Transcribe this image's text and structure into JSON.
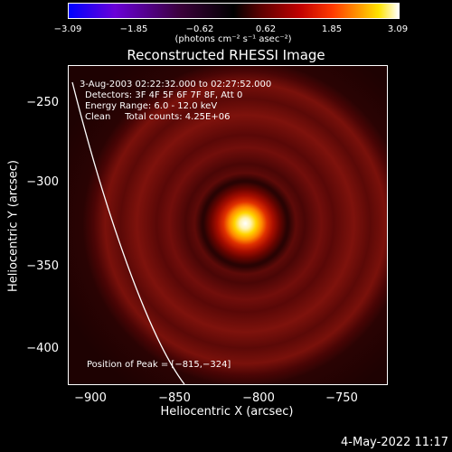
{
  "colorbar": {
    "ticks": [
      "−3.09",
      "−1.85",
      "−0.62",
      "0.62",
      "1.85",
      "3.09"
    ],
    "units": "(photons cm⁻² s⁻¹ asec⁻²)"
  },
  "title": "Reconstructed RHESSI Image",
  "plot": {
    "info_lines": [
      "3-Aug-2003 02:22:32.000 to 02:27:52.000",
      "Detectors: 3F 4F 5F 6F 7F 8F, Att 0",
      "Energy Range: 6.0 - 12.0 keV",
      "Clean     Total counts: 4.25E+06"
    ],
    "peak_label": "Position of Peak = [−815,−324]"
  },
  "axes": {
    "xlabel": "Heliocentric X (arcsec)",
    "ylabel": "Heliocentric Y (arcsec)",
    "xticks": [
      "−900",
      "−850",
      "−800",
      "−750"
    ],
    "yticks": [
      "−250",
      "−300",
      "−350",
      "−400"
    ]
  },
  "timestamp": "4-May-2022 11:17"
}
